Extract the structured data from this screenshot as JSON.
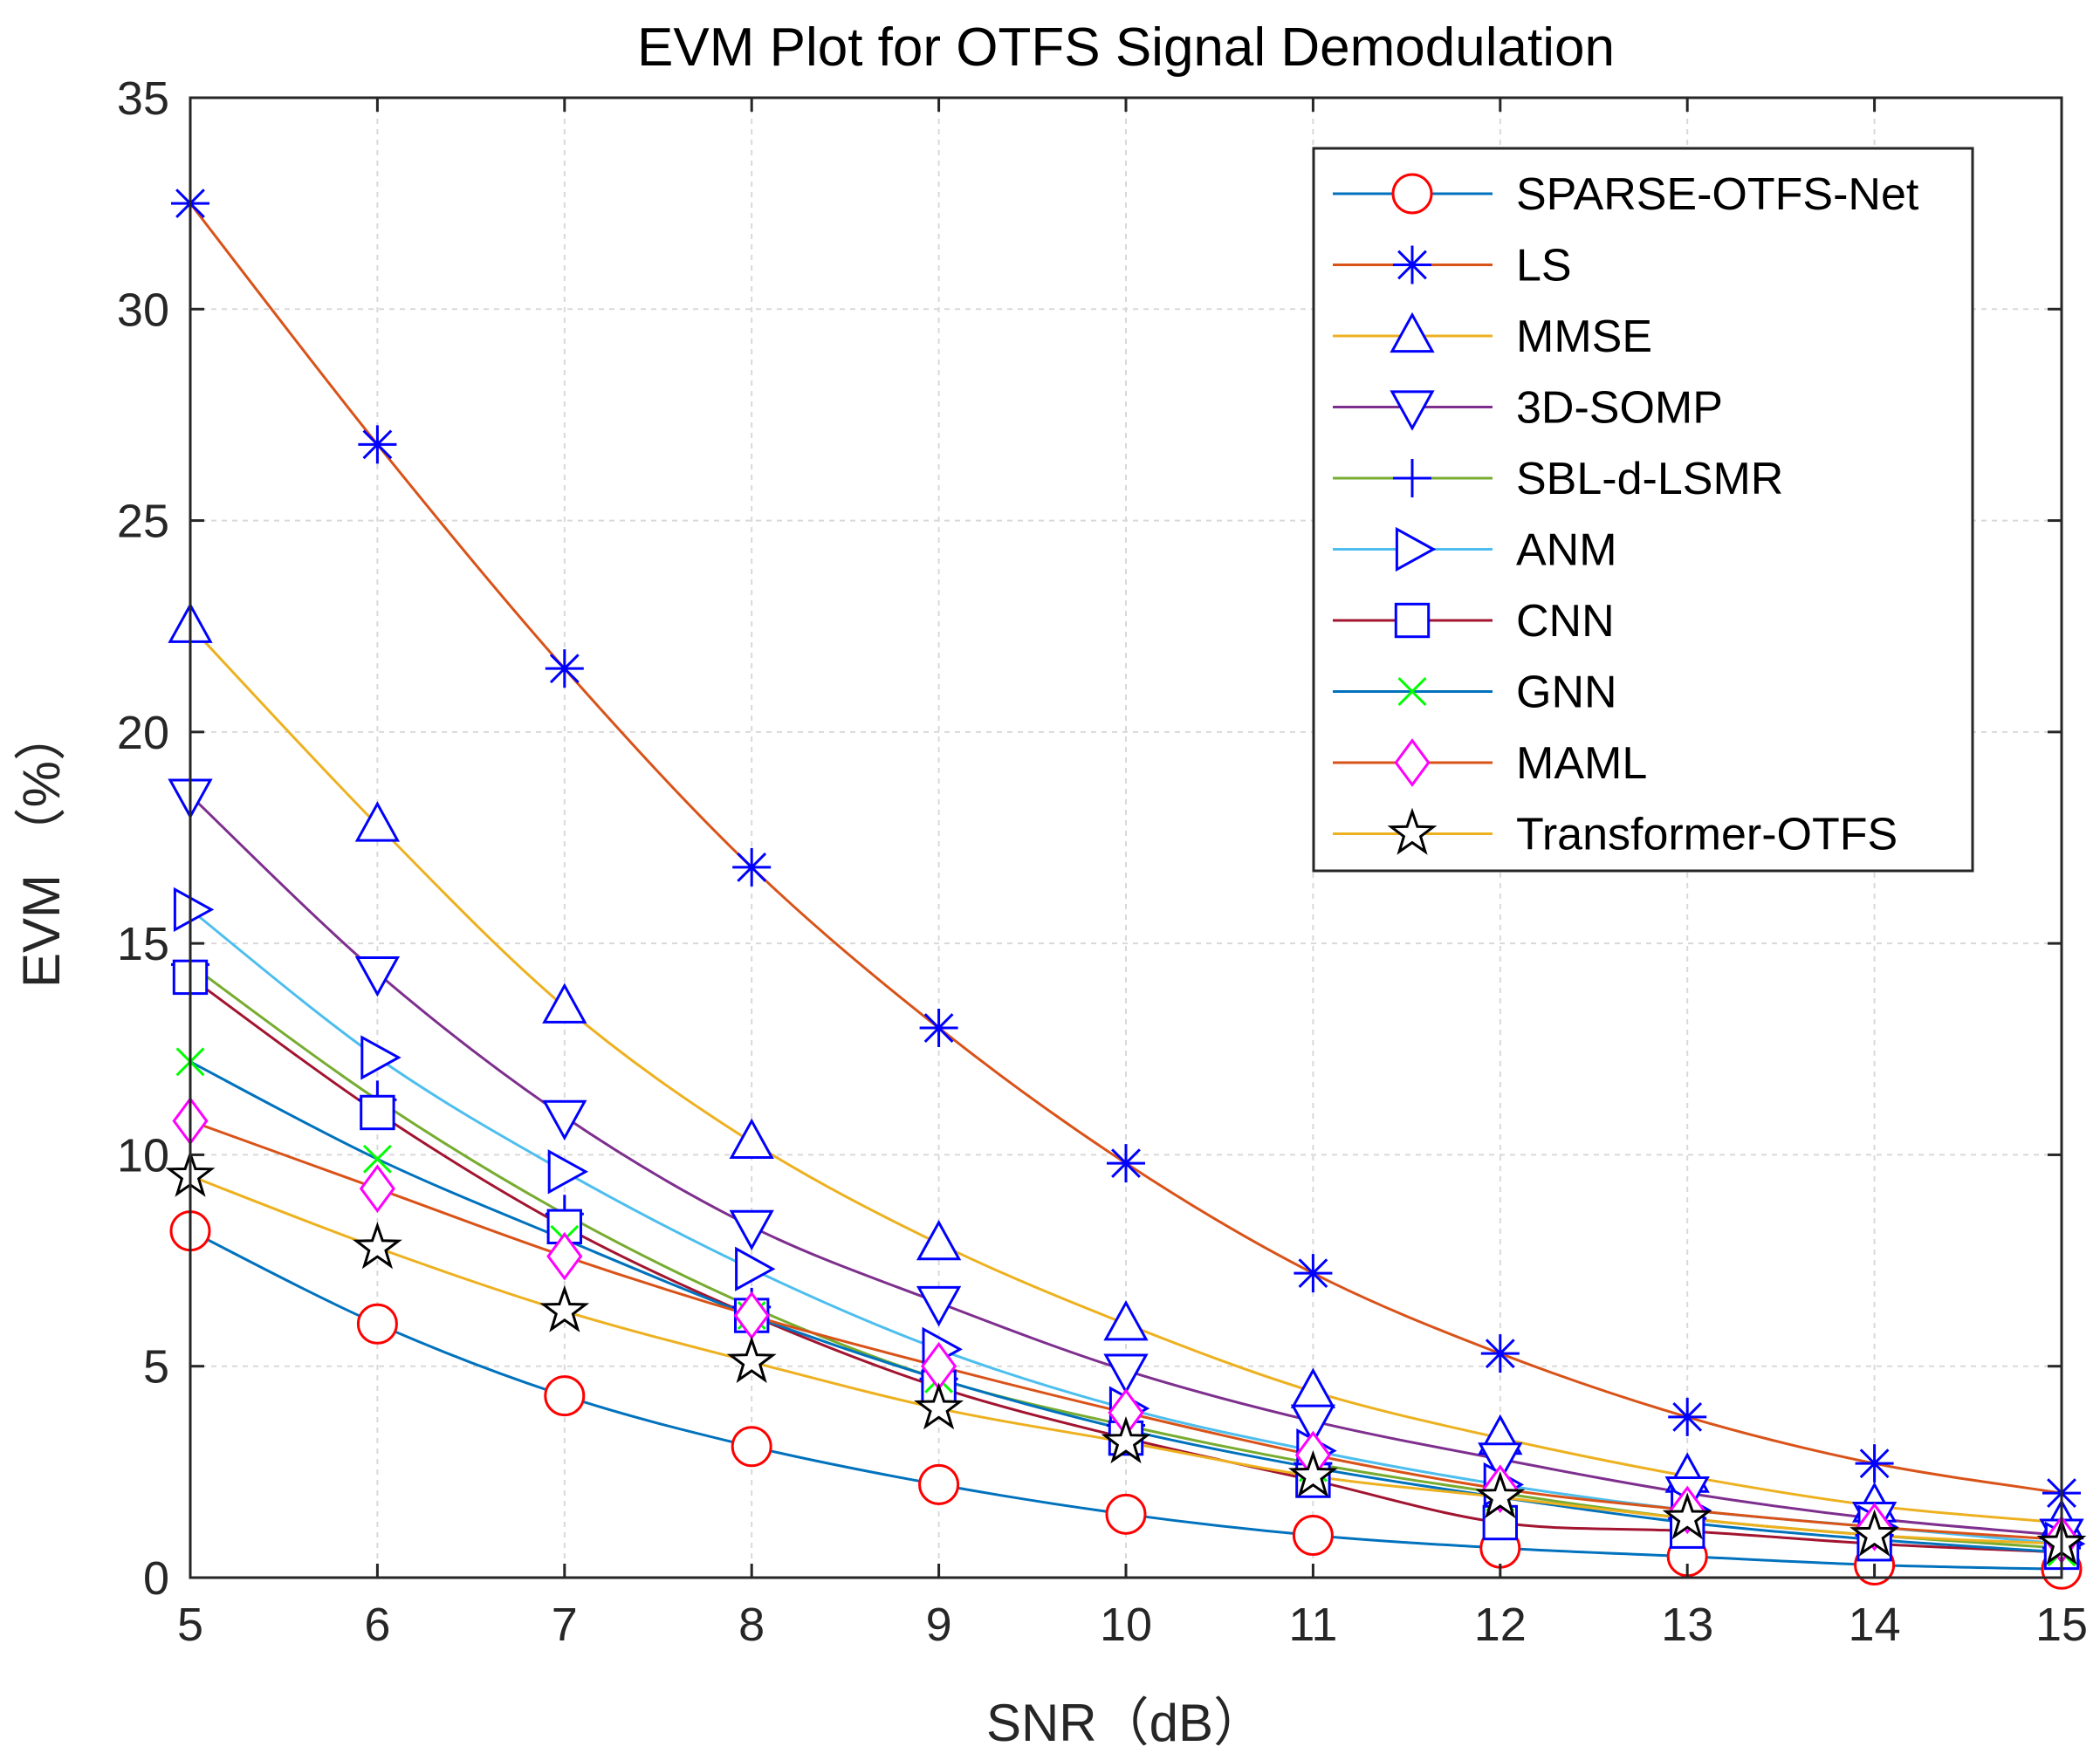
{
  "chart_data": {
    "type": "line",
    "title": "EVM Plot for OTFS Signal Demodulation",
    "xlabel": "SNR（dB）",
    "ylabel": "EVM （%）",
    "xlim": [
      5,
      15
    ],
    "ylim": [
      0,
      35
    ],
    "xticks": [
      5,
      6,
      7,
      8,
      9,
      10,
      11,
      12,
      13,
      14,
      15
    ],
    "yticks": [
      0,
      5,
      10,
      15,
      20,
      25,
      30,
      35
    ],
    "grid": true,
    "legend_position": "top-right",
    "x": [
      5,
      6,
      7,
      8,
      9,
      10,
      11,
      12,
      13,
      14,
      15
    ],
    "series": [
      {
        "name": "SPARSE-OTFS-Net",
        "line_color": "#0072BD",
        "marker": "circle",
        "marker_color": "#FF0000",
        "values": [
          8.2,
          6.0,
          4.3,
          3.1,
          2.2,
          1.5,
          1.0,
          0.7,
          0.5,
          0.3,
          0.2
        ]
      },
      {
        "name": "LS",
        "line_color": "#D95319",
        "marker": "asterisk",
        "marker_color": "#0000FF",
        "values": [
          32.5,
          26.8,
          21.5,
          16.8,
          13.0,
          9.8,
          7.2,
          5.3,
          3.8,
          2.7,
          2.0
        ]
      },
      {
        "name": "MMSE",
        "line_color": "#EDB120",
        "marker": "triangle-up",
        "marker_color": "#0000FF",
        "values": [
          22.5,
          17.8,
          13.5,
          10.3,
          7.9,
          6.0,
          4.4,
          3.3,
          2.4,
          1.7,
          1.3
        ]
      },
      {
        "name": "3D-SOMP",
        "line_color": "#7E2F8E",
        "marker": "triangle-down",
        "marker_color": "#0000FF",
        "values": [
          18.5,
          14.3,
          10.9,
          8.3,
          6.5,
          4.9,
          3.7,
          2.8,
          2.0,
          1.4,
          1.0
        ]
      },
      {
        "name": "SBL-d-LSMR",
        "line_color": "#77AC30",
        "marker": "plus",
        "marker_color": "#0000FF",
        "values": [
          14.5,
          11.3,
          8.6,
          6.4,
          4.7,
          3.6,
          2.7,
          2.0,
          1.4,
          1.0,
          0.7
        ]
      },
      {
        "name": "ANM",
        "line_color": "#4DBEEE",
        "marker": "triangle-right",
        "marker_color": "#0000FF",
        "values": [
          15.8,
          12.3,
          9.6,
          7.3,
          5.4,
          4.0,
          3.0,
          2.2,
          1.6,
          1.2,
          0.8
        ]
      },
      {
        "name": "CNN",
        "line_color": "#A2142F",
        "marker": "square",
        "marker_color": "#0000FF",
        "values": [
          14.2,
          11.0,
          8.3,
          6.2,
          4.5,
          3.3,
          2.3,
          1.3,
          1.1,
          0.8,
          0.6
        ]
      },
      {
        "name": "GNN",
        "line_color": "#0072BD",
        "marker": "x",
        "marker_color": "#00FF00",
        "values": [
          12.2,
          9.9,
          8.0,
          6.2,
          4.7,
          3.5,
          2.6,
          1.9,
          1.3,
          0.9,
          0.6
        ]
      },
      {
        "name": "MAML",
        "line_color": "#D95319",
        "marker": "diamond",
        "marker_color": "#FF00FF",
        "values": [
          10.8,
          9.2,
          7.6,
          6.2,
          5.0,
          3.9,
          2.9,
          2.1,
          1.6,
          1.2,
          0.9
        ]
      },
      {
        "name": "Transformer-OTFS",
        "line_color": "#EDB120",
        "marker": "pentagram",
        "marker_color": "#000000",
        "values": [
          9.5,
          7.8,
          6.3,
          5.1,
          4.0,
          3.2,
          2.4,
          1.9,
          1.4,
          1.0,
          0.8
        ]
      }
    ]
  }
}
